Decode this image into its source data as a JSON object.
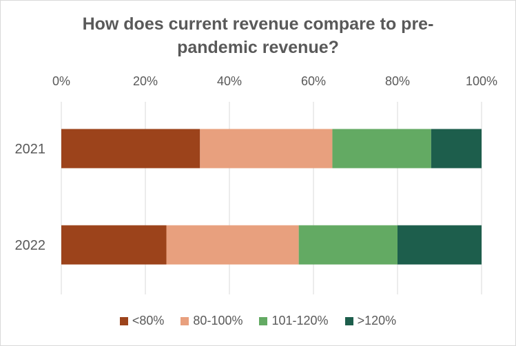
{
  "chart_data": {
    "type": "bar",
    "orientation": "horizontal",
    "stacked": "percent",
    "title_line1": "How does current revenue compare to pre-",
    "title_line2": "pandemic revenue?",
    "categories": [
      "2021",
      "2022"
    ],
    "xlim": [
      0,
      100
    ],
    "x_ticks": [
      "0%",
      "20%",
      "40%",
      "60%",
      "80%",
      "100%"
    ],
    "grid": true,
    "legend_position": "bottom",
    "series": [
      {
        "name": "<80%",
        "color": "#9c431b",
        "values": [
          33,
          25
        ]
      },
      {
        "name": "80-100%",
        "color": "#e8a07e",
        "values": [
          31.5,
          31.5
        ]
      },
      {
        "name": "101-120%",
        "color": "#63aa63",
        "values": [
          23.5,
          23.5
        ]
      },
      {
        "name": ">120%",
        "color": "#1d5e4c",
        "values": [
          12,
          20
        ]
      }
    ]
  }
}
